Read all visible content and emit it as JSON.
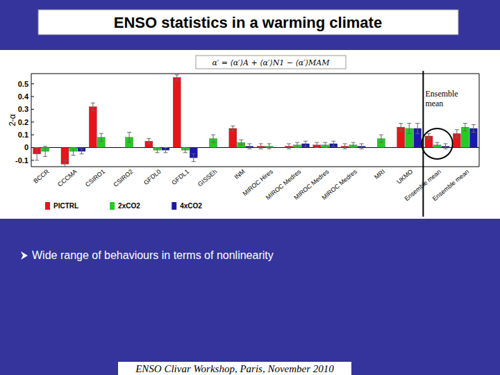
{
  "slide": {
    "title": "ENSO statistics in a warming climate",
    "formula": "α′ = ⟨α′⟩A + ⟨α′⟩N1 − ⟨α′⟩MAM",
    "bullet": "Wide range of behaviours in terms of nonlinearity",
    "footer": "ENSO Clivar Workshop, Paris, November 2010"
  },
  "chart_data": {
    "type": "bar",
    "y_label": "2-α",
    "annotation": "Ensemble mean",
    "categories": [
      "BCCR",
      "CCCMA",
      "CSIRO1",
      "CSIRO2",
      "GFDL0",
      "GFDL1",
      "GISSEh",
      "INM",
      "MIROC Hires",
      "MIROC Medres",
      "MIROC Medres",
      "MIROC Medres",
      "MRI",
      "UKMO",
      "Ensemble mean",
      "Ensemble mean"
    ],
    "series": [
      {
        "name": "PICTRL",
        "color": "#e8141b",
        "values": [
          -0.05,
          -0.13,
          0.32,
          null,
          0.05,
          0.55,
          null,
          0.15,
          0.01,
          0.01,
          0.02,
          0.01,
          null,
          0.16,
          0.09,
          0.11
        ],
        "errors": [
          0.05,
          0.03,
          0.03,
          null,
          0.02,
          0.02,
          null,
          0.02,
          0.02,
          0.02,
          0.02,
          0.02,
          null,
          0.03,
          0.02,
          0.03
        ]
      },
      {
        "name": "2xCO2",
        "color": "#22cc22",
        "values": [
          -0.03,
          -0.03,
          0.08,
          0.08,
          -0.02,
          -0.02,
          0.07,
          0.04,
          0.01,
          0.02,
          0.02,
          0.02,
          0.07,
          0.15,
          0.02,
          0.16
        ],
        "errors": [
          0.04,
          0.03,
          0.03,
          0.04,
          0.02,
          0.02,
          0.03,
          0.02,
          0.02,
          0.02,
          0.02,
          0.02,
          0.03,
          0.04,
          0.02,
          0.03
        ]
      },
      {
        "name": "4xCO2",
        "color": "#1a1aaa",
        "values": [
          null,
          -0.03,
          null,
          null,
          -0.02,
          -0.08,
          null,
          0.01,
          null,
          0.03,
          0.03,
          0.01,
          null,
          0.15,
          0.01,
          0.15
        ],
        "errors": [
          null,
          0.02,
          null,
          null,
          0.02,
          0.03,
          null,
          0.02,
          null,
          0.02,
          0.02,
          0.02,
          null,
          0.04,
          0.02,
          0.03
        ]
      }
    ],
    "ylim": [
      -0.15,
      0.58
    ],
    "yticks": [
      -0.1,
      0,
      0.1,
      0.2,
      0.3,
      0.4,
      0.5
    ],
    "grid": false,
    "legend": "bottom-left"
  }
}
